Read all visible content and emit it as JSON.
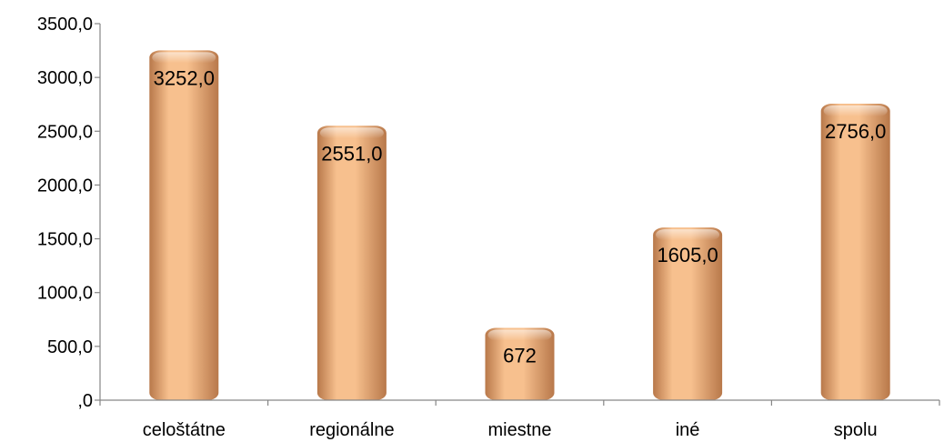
{
  "chart_data": {
    "type": "bar",
    "categories": [
      "celoštátne",
      "regionálne",
      "miestne",
      "iné",
      "spolu"
    ],
    "values": [
      3252.0,
      2551.0,
      672,
      1605.0,
      2756.0
    ],
    "data_labels": [
      "3252,0",
      "2551,0",
      "672",
      "1605,0",
      "2756,0"
    ],
    "yticks": [
      ",0",
      "500,0",
      "1000,0",
      "1500,0",
      "2000,0",
      "2500,0",
      "3000,0",
      "3500,0"
    ],
    "ylim": [
      0,
      3500
    ],
    "ytick_step": 500,
    "grid": false,
    "legend": "none",
    "bar_color": "#f7c08e",
    "bar_shade_color": "#b8784a",
    "title": "",
    "xlabel": "",
    "ylabel": ""
  }
}
